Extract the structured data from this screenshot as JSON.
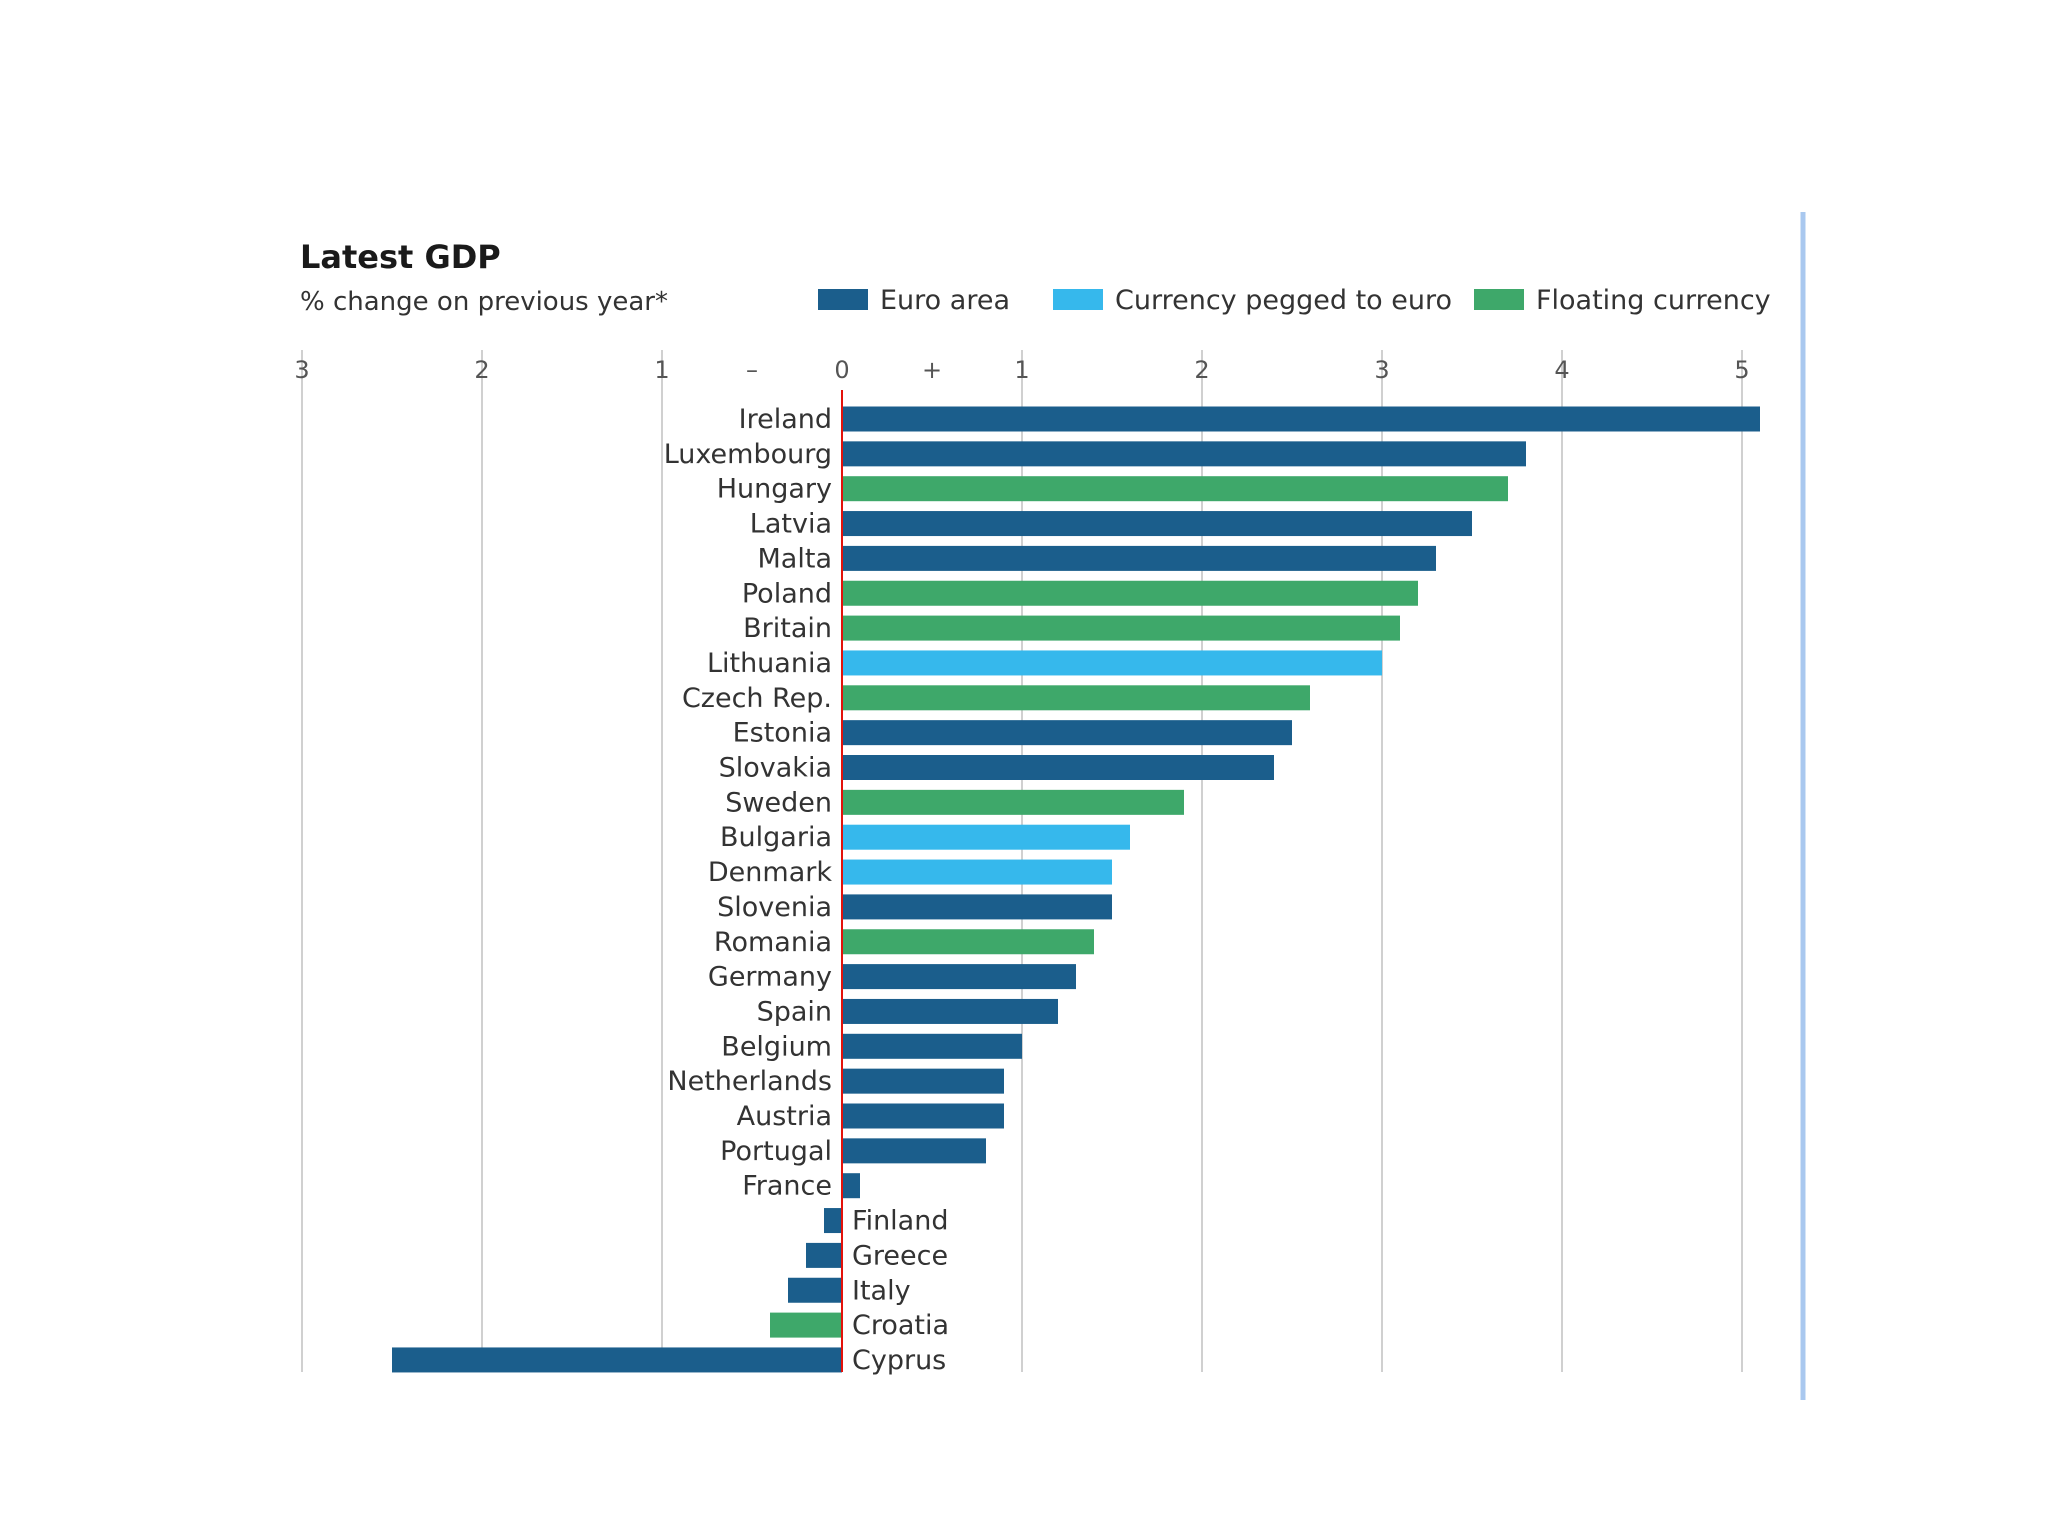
{
  "chart_data": {
    "type": "bar",
    "orientation": "horizontal",
    "title": "Latest GDP",
    "subtitle": "% change on previous year*",
    "xlim": [
      -3,
      5
    ],
    "ticks": [
      {
        "value": -3,
        "label": "3"
      },
      {
        "value": -2,
        "label": "2"
      },
      {
        "value": -1,
        "label": "1"
      },
      {
        "value": -0.5,
        "label": "–"
      },
      {
        "value": 0,
        "label": "0"
      },
      {
        "value": 0.5,
        "label": "+"
      },
      {
        "value": 1,
        "label": "1"
      },
      {
        "value": 2,
        "label": "2"
      },
      {
        "value": 3,
        "label": "3"
      },
      {
        "value": 4,
        "label": "4"
      },
      {
        "value": 5,
        "label": "5"
      }
    ],
    "grid": true,
    "legend": [
      {
        "key": "euro",
        "label": "Euro area",
        "color": "#1b5e8c"
      },
      {
        "key": "pegged",
        "label": "Currency pegged to euro",
        "color": "#36b8ec"
      },
      {
        "key": "floating",
        "label": "Floating currency",
        "color": "#3ea86a"
      }
    ],
    "zero_line_color": "#e3120b",
    "bars": [
      {
        "label": "Ireland",
        "value": 5.1,
        "group": "euro"
      },
      {
        "label": "Luxembourg",
        "value": 3.8,
        "group": "euro"
      },
      {
        "label": "Hungary",
        "value": 3.7,
        "group": "floating"
      },
      {
        "label": "Latvia",
        "value": 3.5,
        "group": "euro"
      },
      {
        "label": "Malta",
        "value": 3.3,
        "group": "euro"
      },
      {
        "label": "Poland",
        "value": 3.2,
        "group": "floating"
      },
      {
        "label": "Britain",
        "value": 3.1,
        "group": "floating"
      },
      {
        "label": "Lithuania",
        "value": 3.0,
        "group": "pegged"
      },
      {
        "label": "Czech Rep.",
        "value": 2.6,
        "group": "floating"
      },
      {
        "label": "Estonia",
        "value": 2.5,
        "group": "euro"
      },
      {
        "label": "Slovakia",
        "value": 2.4,
        "group": "euro"
      },
      {
        "label": "Sweden",
        "value": 1.9,
        "group": "floating"
      },
      {
        "label": "Bulgaria",
        "value": 1.6,
        "group": "pegged"
      },
      {
        "label": "Denmark",
        "value": 1.5,
        "group": "pegged"
      },
      {
        "label": "Slovenia",
        "value": 1.5,
        "group": "euro"
      },
      {
        "label": "Romania",
        "value": 1.4,
        "group": "floating"
      },
      {
        "label": "Germany",
        "value": 1.3,
        "group": "euro"
      },
      {
        "label": "Spain",
        "value": 1.2,
        "group": "euro"
      },
      {
        "label": "Belgium",
        "value": 1.0,
        "group": "euro"
      },
      {
        "label": "Netherlands",
        "value": 0.9,
        "group": "euro"
      },
      {
        "label": "Austria",
        "value": 0.9,
        "group": "euro"
      },
      {
        "label": "Portugal",
        "value": 0.8,
        "group": "euro"
      },
      {
        "label": "France",
        "value": 0.1,
        "group": "euro"
      },
      {
        "label": "Finland",
        "value": -0.1,
        "group": "euro"
      },
      {
        "label": "Greece",
        "value": -0.2,
        "group": "euro"
      },
      {
        "label": "Italy",
        "value": -0.3,
        "group": "euro"
      },
      {
        "label": "Croatia",
        "value": -0.4,
        "group": "floating"
      },
      {
        "label": "Cyprus",
        "value": -2.5,
        "group": "euro"
      }
    ]
  }
}
